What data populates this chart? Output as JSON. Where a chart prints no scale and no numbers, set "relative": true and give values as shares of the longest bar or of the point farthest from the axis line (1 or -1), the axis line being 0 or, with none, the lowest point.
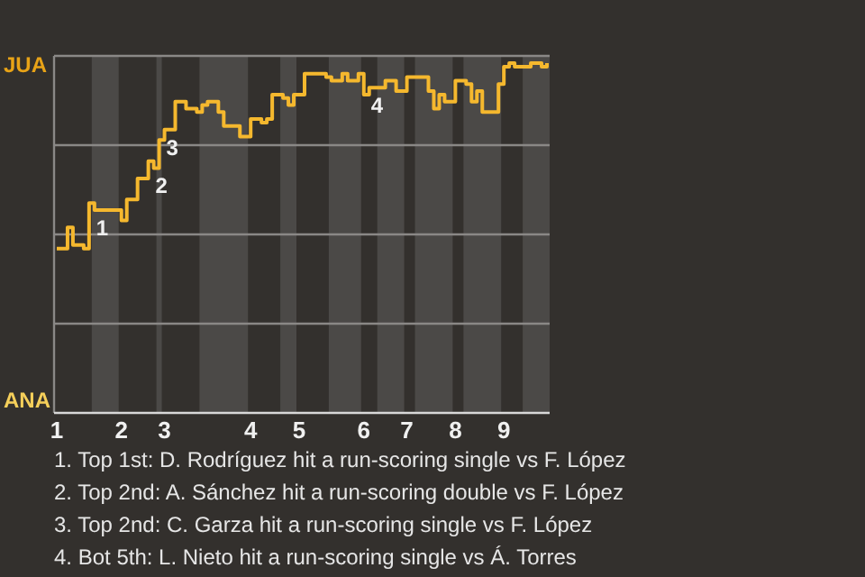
{
  "chart_data": {
    "type": "step",
    "relative": true,
    "categories": [
      "1",
      null,
      null,
      null,
      null,
      null,
      null,
      null,
      null,
      null,
      null,
      null,
      "2",
      null,
      null,
      null,
      null,
      null,
      null,
      null,
      "3",
      null,
      null,
      null,
      null,
      null,
      null,
      null,
      null,
      null,
      null,
      null,
      null,
      null,
      null,
      null,
      "4",
      null,
      null,
      null,
      null,
      null,
      null,
      null,
      null,
      "5",
      null,
      null,
      null,
      null,
      null,
      null,
      null,
      null,
      null,
      null,
      null,
      "6",
      null,
      null,
      null,
      null,
      null,
      null,
      null,
      "7",
      null,
      null,
      null,
      null,
      null,
      null,
      null,
      null,
      "8",
      null,
      null,
      null,
      null,
      null,
      null,
      null,
      null,
      "9",
      null,
      null,
      null,
      null,
      null,
      null,
      null,
      null
    ],
    "grid": "y",
    "series": [
      {
        "color": "#f5b82e",
        "values": [
          0.47,
          0.47,
          0.53,
          0.48,
          0.48,
          0.47,
          0.6,
          0.58,
          0.58,
          0.58,
          0.58,
          0.58,
          0.55,
          0.61,
          0.61,
          0.67,
          0.67,
          0.72,
          0.7,
          0.78,
          0.81,
          0.81,
          0.89,
          0.89,
          0.87,
          0.87,
          0.86,
          0.88,
          0.89,
          0.89,
          0.86,
          0.82,
          0.82,
          0.82,
          0.79,
          0.79,
          0.84,
          0.84,
          0.83,
          0.84,
          0.91,
          0.91,
          0.9,
          0.88,
          0.91,
          0.91,
          0.97,
          0.97,
          0.97,
          0.97,
          0.96,
          0.95,
          0.95,
          0.97,
          0.95,
          0.95,
          0.97,
          0.91,
          0.93,
          0.93,
          0.93,
          0.95,
          0.95,
          0.92,
          0.92,
          0.96,
          0.96,
          0.96,
          0.96,
          0.92,
          0.87,
          0.91,
          0.89,
          0.89,
          0.95,
          0.95,
          0.94,
          0.89,
          0.92,
          0.86,
          0.86,
          0.86,
          0.94,
          0.99,
          1,
          0.99,
          0.99,
          0.99,
          1,
          1,
          0.99,
          1
        ]
      }
    ],
    "annotations": [
      "JUA",
      "ANA",
      {
        "text": "1",
        "y": 0.58
      },
      {
        "text": "2",
        "y": 0.7
      },
      {
        "text": "3",
        "y": 0.81
      },
      {
        "text": "4",
        "y": 0.93
      },
      "1. Top 1st: D. Rodríguez hit a run-scoring single vs F. López",
      "2. Top 2nd: A. Sánchez hit a run-scoring double vs F. López",
      "3. Top 2nd: C. Garza hit a run-scoring single vs F. López",
      "4. Bot 5th: L. Nieto hit a run-scoring single vs Á. Torres"
    ]
  }
}
